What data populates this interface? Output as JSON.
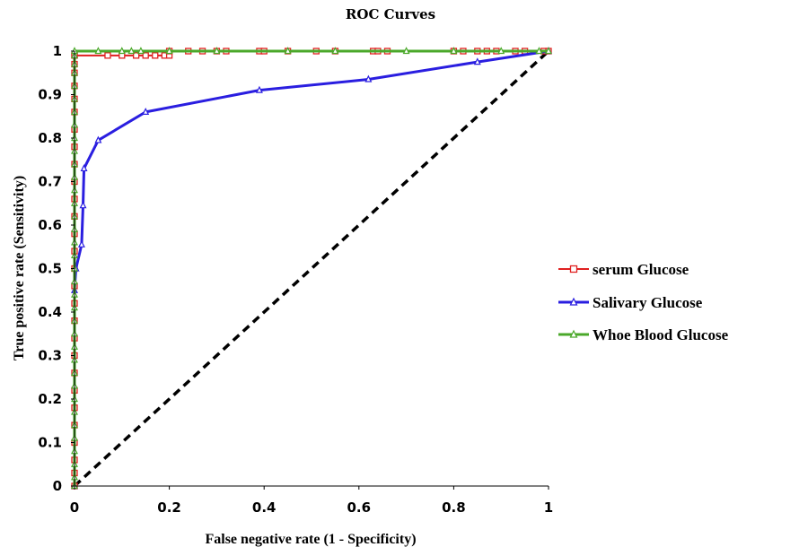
{
  "chart_data": {
    "type": "line",
    "title": "ROC Curves",
    "xlabel": "False negative rate (1 - Specificity)",
    "ylabel": "True positive rate (Sensitivity)",
    "xlim": [
      0,
      1
    ],
    "ylim": [
      0,
      1
    ],
    "x_ticks": [
      "0",
      "0.2",
      "0.4",
      "0.6",
      "0.8",
      "1"
    ],
    "y_ticks": [
      "0",
      "0.1",
      "0.2",
      "0.3",
      "0.4",
      "0.5",
      "0.6",
      "0.7",
      "0.8",
      "0.9",
      "1"
    ],
    "grid": false,
    "legend_position": "right",
    "reference_line": {
      "x": [
        0,
        1
      ],
      "y": [
        0,
        1
      ],
      "color": "#000000",
      "style": "dashed"
    },
    "series": [
      {
        "name": "serum Glucose",
        "color": "#e02020",
        "marker": "square",
        "x": [
          0,
          0,
          0,
          0,
          0,
          0,
          0,
          0,
          0,
          0,
          0,
          0,
          0,
          0,
          0,
          0,
          0,
          0,
          0,
          0,
          0,
          0,
          0,
          0,
          0,
          0,
          0,
          0,
          0,
          0.07,
          0.1,
          0.13,
          0.15,
          0.17,
          0.19,
          0.2,
          0.2,
          0.24,
          0.27,
          0.3,
          0.32,
          0.39,
          0.4,
          0.45,
          0.51,
          0.55,
          0.63,
          0.64,
          0.66,
          0.8,
          0.82,
          0.85,
          0.87,
          0.89,
          0.93,
          0.95,
          0.99,
          1
        ],
        "y": [
          0,
          0.03,
          0.06,
          0.1,
          0.14,
          0.18,
          0.22,
          0.26,
          0.3,
          0.34,
          0.38,
          0.42,
          0.46,
          0.5,
          0.54,
          0.58,
          0.62,
          0.66,
          0.7,
          0.74,
          0.78,
          0.82,
          0.86,
          0.89,
          0.92,
          0.95,
          0.97,
          0.99,
          0.99,
          0.99,
          0.99,
          0.99,
          0.99,
          0.99,
          0.99,
          0.99,
          1,
          1,
          1,
          1,
          1,
          1,
          1,
          1,
          1,
          1,
          1,
          1,
          1,
          1,
          1,
          1,
          1,
          1,
          1,
          1,
          1,
          1
        ]
      },
      {
        "name": "Salivary Glucose",
        "color": "#2a1ee0",
        "marker": "triangle",
        "x": [
          0,
          0,
          0.003,
          0.015,
          0.018,
          0.02,
          0.05,
          0.15,
          0.39,
          0.62,
          0.85,
          1
        ],
        "y": [
          0,
          0.45,
          0.5,
          0.555,
          0.645,
          0.73,
          0.795,
          0.86,
          0.91,
          0.935,
          0.975,
          1
        ]
      },
      {
        "name": "Whoe Blood Glucose",
        "color": "#4aa82a",
        "marker": "triangle",
        "x": [
          0,
          0,
          0,
          0,
          0,
          0,
          0,
          0,
          0,
          0,
          0,
          0,
          0,
          0,
          0,
          0,
          0,
          0,
          0,
          0,
          0,
          0,
          0,
          0,
          0,
          0,
          0,
          0,
          0,
          0,
          0,
          0,
          0,
          0,
          0,
          0,
          0.05,
          0.1,
          0.12,
          0.14,
          0.2,
          0.3,
          0.45,
          0.55,
          0.7,
          0.8,
          0.9,
          0.98,
          1
        ],
        "y": [
          0,
          0.02,
          0.05,
          0.08,
          0.11,
          0.14,
          0.17,
          0.2,
          0.23,
          0.26,
          0.29,
          0.32,
          0.35,
          0.38,
          0.41,
          0.44,
          0.47,
          0.5,
          0.53,
          0.56,
          0.59,
          0.62,
          0.65,
          0.68,
          0.71,
          0.74,
          0.77,
          0.8,
          0.83,
          0.86,
          0.89,
          0.92,
          0.95,
          0.97,
          0.99,
          1,
          1,
          1,
          1,
          1,
          1,
          1,
          1,
          1,
          1,
          1,
          1,
          1,
          1
        ]
      }
    ]
  }
}
